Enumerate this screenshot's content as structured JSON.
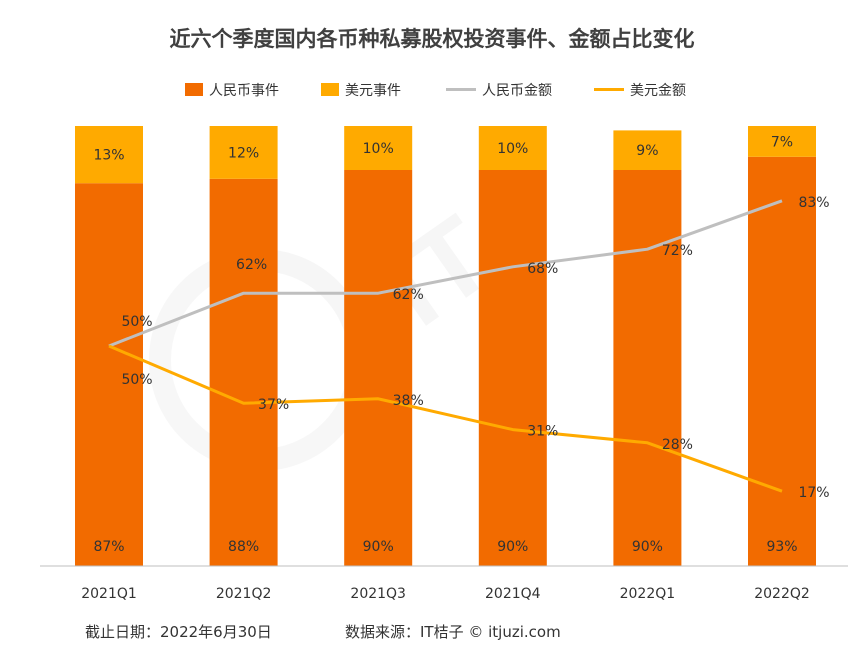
{
  "chart_data": {
    "type": "bar",
    "title": "近六个季度国内各币种私募股权投资事件、金额占比变化",
    "categories": [
      "2021Q1",
      "2021Q2",
      "2021Q3",
      "2021Q4",
      "2022Q1",
      "2022Q2"
    ],
    "stacked": true,
    "ylim": [
      0,
      100
    ],
    "legend_position": "top",
    "series": [
      {
        "name": "人民币事件",
        "kind": "bar",
        "color": "#F26B00",
        "values": [
          87,
          88,
          90,
          90,
          90,
          93
        ],
        "labels": [
          "87%",
          "88%",
          "90%",
          "90%",
          "90%",
          "93%"
        ]
      },
      {
        "name": "美元事件",
        "kind": "bar",
        "color": "#FFAA00",
        "values": [
          13,
          12,
          10,
          10,
          9,
          7
        ],
        "labels": [
          "13%",
          "12%",
          "10%",
          "10%",
          "9%",
          "7%"
        ]
      },
      {
        "name": "人民币金额",
        "kind": "line",
        "color": "#BFBFBF",
        "values": [
          50,
          62,
          62,
          68,
          72,
          83
        ],
        "labels": [
          "50%",
          "62%",
          "62%",
          "68%",
          "72%",
          "83%"
        ]
      },
      {
        "name": "美元金额",
        "kind": "line",
        "color": "#FFAA00",
        "values": [
          50,
          37,
          38,
          31,
          28,
          17
        ],
        "labels": [
          "50%",
          "37%",
          "38%",
          "31%",
          "28%",
          "17%"
        ]
      }
    ]
  },
  "footer": {
    "note": "截止日期：2022年6月30日",
    "source": "数据来源：IT桔子 © itjuzi.com"
  }
}
